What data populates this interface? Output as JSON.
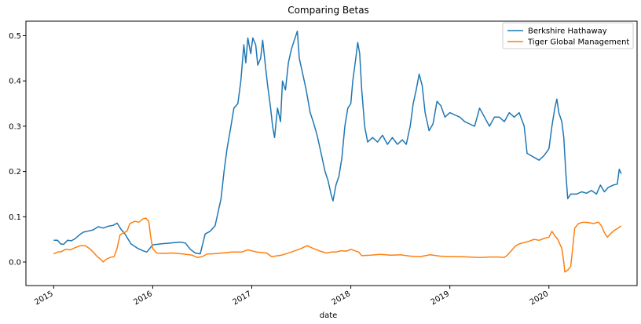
{
  "chart_data": {
    "type": "line",
    "title": "Comparing Betas",
    "xlabel": "date",
    "ylabel": "",
    "xlim": [
      2014.72,
      2020.89
    ],
    "ylim": [
      -0.052,
      0.532
    ],
    "x_ticks": [
      2015,
      2016,
      2017,
      2018,
      2019,
      2020
    ],
    "x_tick_labels": [
      "2015",
      "2016",
      "2017",
      "2018",
      "2019",
      "2020"
    ],
    "y_ticks": [
      0.0,
      0.1,
      0.2,
      0.3,
      0.4,
      0.5
    ],
    "y_tick_labels": [
      "0.0",
      "0.1",
      "0.2",
      "0.3",
      "0.4",
      "0.5"
    ],
    "legend_position": "top-right",
    "grid": false,
    "series": [
      {
        "name": "Berkshire Hathaway",
        "color": "#1f77b4",
        "points": [
          [
            2015.0,
            0.048
          ],
          [
            2015.04,
            0.048
          ],
          [
            2015.07,
            0.04
          ],
          [
            2015.1,
            0.039
          ],
          [
            2015.14,
            0.048
          ],
          [
            2015.18,
            0.047
          ],
          [
            2015.22,
            0.052
          ],
          [
            2015.26,
            0.06
          ],
          [
            2015.3,
            0.066
          ],
          [
            2015.34,
            0.068
          ],
          [
            2015.4,
            0.071
          ],
          [
            2015.45,
            0.078
          ],
          [
            2015.5,
            0.075
          ],
          [
            2015.55,
            0.079
          ],
          [
            2015.6,
            0.081
          ],
          [
            2015.64,
            0.086
          ],
          [
            2015.68,
            0.072
          ],
          [
            2015.72,
            0.062
          ],
          [
            2015.78,
            0.04
          ],
          [
            2015.85,
            0.03
          ],
          [
            2015.9,
            0.025
          ],
          [
            2015.94,
            0.022
          ],
          [
            2016.0,
            0.038
          ],
          [
            2016.08,
            0.04
          ],
          [
            2016.18,
            0.042
          ],
          [
            2016.28,
            0.044
          ],
          [
            2016.33,
            0.042
          ],
          [
            2016.38,
            0.028
          ],
          [
            2016.43,
            0.02
          ],
          [
            2016.48,
            0.018
          ],
          [
            2016.53,
            0.062
          ],
          [
            2016.58,
            0.068
          ],
          [
            2016.63,
            0.08
          ],
          [
            2016.66,
            0.11
          ],
          [
            2016.69,
            0.14
          ],
          [
            2016.72,
            0.2
          ],
          [
            2016.75,
            0.25
          ],
          [
            2016.79,
            0.3
          ],
          [
            2016.82,
            0.34
          ],
          [
            2016.86,
            0.35
          ],
          [
            2016.89,
            0.4
          ],
          [
            2016.92,
            0.48
          ],
          [
            2016.94,
            0.44
          ],
          [
            2016.96,
            0.495
          ],
          [
            2016.99,
            0.46
          ],
          [
            2017.01,
            0.495
          ],
          [
            2017.04,
            0.48
          ],
          [
            2017.06,
            0.435
          ],
          [
            2017.09,
            0.45
          ],
          [
            2017.11,
            0.49
          ],
          [
            2017.14,
            0.43
          ],
          [
            2017.16,
            0.39
          ],
          [
            2017.19,
            0.34
          ],
          [
            2017.21,
            0.3
          ],
          [
            2017.23,
            0.275
          ],
          [
            2017.26,
            0.34
          ],
          [
            2017.29,
            0.31
          ],
          [
            2017.31,
            0.4
          ],
          [
            2017.34,
            0.38
          ],
          [
            2017.37,
            0.44
          ],
          [
            2017.4,
            0.47
          ],
          [
            2017.43,
            0.49
          ],
          [
            2017.46,
            0.51
          ],
          [
            2017.48,
            0.45
          ],
          [
            2017.51,
            0.42
          ],
          [
            2017.55,
            0.38
          ],
          [
            2017.59,
            0.33
          ],
          [
            2017.62,
            0.31
          ],
          [
            2017.66,
            0.28
          ],
          [
            2017.7,
            0.24
          ],
          [
            2017.74,
            0.2
          ],
          [
            2017.77,
            0.18
          ],
          [
            2017.8,
            0.15
          ],
          [
            2017.82,
            0.135
          ],
          [
            2017.85,
            0.17
          ],
          [
            2017.88,
            0.19
          ],
          [
            2017.91,
            0.23
          ],
          [
            2017.94,
            0.3
          ],
          [
            2017.97,
            0.34
          ],
          [
            2018.0,
            0.35
          ],
          [
            2018.02,
            0.4
          ],
          [
            2018.05,
            0.45
          ],
          [
            2018.07,
            0.485
          ],
          [
            2018.09,
            0.46
          ],
          [
            2018.11,
            0.38
          ],
          [
            2018.14,
            0.3
          ],
          [
            2018.17,
            0.265
          ],
          [
            2018.22,
            0.275
          ],
          [
            2018.27,
            0.265
          ],
          [
            2018.32,
            0.28
          ],
          [
            2018.37,
            0.26
          ],
          [
            2018.42,
            0.275
          ],
          [
            2018.47,
            0.26
          ],
          [
            2018.52,
            0.27
          ],
          [
            2018.56,
            0.26
          ],
          [
            2018.6,
            0.3
          ],
          [
            2018.63,
            0.35
          ],
          [
            2018.66,
            0.38
          ],
          [
            2018.69,
            0.415
          ],
          [
            2018.72,
            0.39
          ],
          [
            2018.75,
            0.33
          ],
          [
            2018.79,
            0.29
          ],
          [
            2018.83,
            0.305
          ],
          [
            2018.87,
            0.355
          ],
          [
            2018.91,
            0.345
          ],
          [
            2018.95,
            0.32
          ],
          [
            2019.0,
            0.33
          ],
          [
            2019.05,
            0.325
          ],
          [
            2019.1,
            0.32
          ],
          [
            2019.15,
            0.31
          ],
          [
            2019.2,
            0.305
          ],
          [
            2019.25,
            0.3
          ],
          [
            2019.3,
            0.34
          ],
          [
            2019.35,
            0.32
          ],
          [
            2019.4,
            0.3
          ],
          [
            2019.45,
            0.32
          ],
          [
            2019.5,
            0.32
          ],
          [
            2019.55,
            0.31
          ],
          [
            2019.6,
            0.33
          ],
          [
            2019.65,
            0.32
          ],
          [
            2019.7,
            0.33
          ],
          [
            2019.75,
            0.3
          ],
          [
            2019.78,
            0.24
          ],
          [
            2019.82,
            0.235
          ],
          [
            2019.86,
            0.23
          ],
          [
            2019.9,
            0.225
          ],
          [
            2019.95,
            0.235
          ],
          [
            2020.0,
            0.25
          ],
          [
            2020.03,
            0.3
          ],
          [
            2020.06,
            0.34
          ],
          [
            2020.08,
            0.36
          ],
          [
            2020.1,
            0.33
          ],
          [
            2020.13,
            0.31
          ],
          [
            2020.15,
            0.275
          ],
          [
            2020.17,
            0.2
          ],
          [
            2020.19,
            0.14
          ],
          [
            2020.22,
            0.15
          ],
          [
            2020.28,
            0.15
          ],
          [
            2020.33,
            0.155
          ],
          [
            2020.38,
            0.152
          ],
          [
            2020.43,
            0.158
          ],
          [
            2020.48,
            0.15
          ],
          [
            2020.52,
            0.17
          ],
          [
            2020.56,
            0.155
          ],
          [
            2020.6,
            0.165
          ],
          [
            2020.65,
            0.17
          ],
          [
            2020.69,
            0.172
          ],
          [
            2020.71,
            0.205
          ],
          [
            2020.73,
            0.195
          ]
        ]
      },
      {
        "name": "Tiger Global Management",
        "color": "#ff7f0e",
        "points": [
          [
            2015.0,
            0.018
          ],
          [
            2015.04,
            0.022
          ],
          [
            2015.08,
            0.023
          ],
          [
            2015.12,
            0.028
          ],
          [
            2015.17,
            0.027
          ],
          [
            2015.22,
            0.032
          ],
          [
            2015.27,
            0.036
          ],
          [
            2015.32,
            0.036
          ],
          [
            2015.36,
            0.03
          ],
          [
            2015.4,
            0.022
          ],
          [
            2015.44,
            0.012
          ],
          [
            2015.48,
            0.005
          ],
          [
            2015.5,
            0.0
          ],
          [
            2015.53,
            0.006
          ],
          [
            2015.57,
            0.01
          ],
          [
            2015.61,
            0.012
          ],
          [
            2015.64,
            0.03
          ],
          [
            2015.67,
            0.06
          ],
          [
            2015.71,
            0.065
          ],
          [
            2015.74,
            0.068
          ],
          [
            2015.77,
            0.085
          ],
          [
            2015.82,
            0.09
          ],
          [
            2015.86,
            0.088
          ],
          [
            2015.9,
            0.095
          ],
          [
            2015.93,
            0.097
          ],
          [
            2015.96,
            0.09
          ],
          [
            2015.98,
            0.055
          ],
          [
            2016.0,
            0.03
          ],
          [
            2016.04,
            0.02
          ],
          [
            2016.1,
            0.019
          ],
          [
            2016.2,
            0.02
          ],
          [
            2016.3,
            0.018
          ],
          [
            2016.4,
            0.015
          ],
          [
            2016.45,
            0.01
          ],
          [
            2016.5,
            0.012
          ],
          [
            2016.55,
            0.018
          ],
          [
            2016.6,
            0.018
          ],
          [
            2016.7,
            0.02
          ],
          [
            2016.8,
            0.022
          ],
          [
            2016.9,
            0.022
          ],
          [
            2016.96,
            0.027
          ],
          [
            2017.05,
            0.022
          ],
          [
            2017.15,
            0.02
          ],
          [
            2017.2,
            0.012
          ],
          [
            2017.3,
            0.015
          ],
          [
            2017.4,
            0.022
          ],
          [
            2017.5,
            0.03
          ],
          [
            2017.56,
            0.036
          ],
          [
            2017.62,
            0.03
          ],
          [
            2017.68,
            0.025
          ],
          [
            2017.75,
            0.02
          ],
          [
            2017.8,
            0.022
          ],
          [
            2017.85,
            0.022
          ],
          [
            2017.9,
            0.025
          ],
          [
            2017.96,
            0.024
          ],
          [
            2018.0,
            0.028
          ],
          [
            2018.04,
            0.025
          ],
          [
            2018.08,
            0.022
          ],
          [
            2018.11,
            0.014
          ],
          [
            2018.2,
            0.015
          ],
          [
            2018.3,
            0.017
          ],
          [
            2018.4,
            0.015
          ],
          [
            2018.5,
            0.016
          ],
          [
            2018.6,
            0.013
          ],
          [
            2018.7,
            0.012
          ],
          [
            2018.8,
            0.016
          ],
          [
            2018.9,
            0.013
          ],
          [
            2019.0,
            0.012
          ],
          [
            2019.1,
            0.012
          ],
          [
            2019.2,
            0.011
          ],
          [
            2019.3,
            0.01
          ],
          [
            2019.4,
            0.011
          ],
          [
            2019.5,
            0.011
          ],
          [
            2019.55,
            0.01
          ],
          [
            2019.58,
            0.015
          ],
          [
            2019.62,
            0.025
          ],
          [
            2019.66,
            0.035
          ],
          [
            2019.7,
            0.04
          ],
          [
            2019.75,
            0.043
          ],
          [
            2019.8,
            0.046
          ],
          [
            2019.85,
            0.05
          ],
          [
            2019.9,
            0.048
          ],
          [
            2019.95,
            0.052
          ],
          [
            2020.0,
            0.055
          ],
          [
            2020.03,
            0.068
          ],
          [
            2020.06,
            0.058
          ],
          [
            2020.09,
            0.05
          ],
          [
            2020.11,
            0.04
          ],
          [
            2020.13,
            0.03
          ],
          [
            2020.15,
            0.0
          ],
          [
            2020.16,
            -0.022
          ],
          [
            2020.19,
            -0.018
          ],
          [
            2020.22,
            -0.01
          ],
          [
            2020.24,
            0.03
          ],
          [
            2020.26,
            0.075
          ],
          [
            2020.3,
            0.085
          ],
          [
            2020.35,
            0.088
          ],
          [
            2020.4,
            0.087
          ],
          [
            2020.45,
            0.085
          ],
          [
            2020.5,
            0.088
          ],
          [
            2020.53,
            0.08
          ],
          [
            2020.56,
            0.065
          ],
          [
            2020.59,
            0.055
          ],
          [
            2020.62,
            0.062
          ],
          [
            2020.66,
            0.07
          ],
          [
            2020.7,
            0.075
          ],
          [
            2020.73,
            0.08
          ]
        ]
      }
    ]
  }
}
